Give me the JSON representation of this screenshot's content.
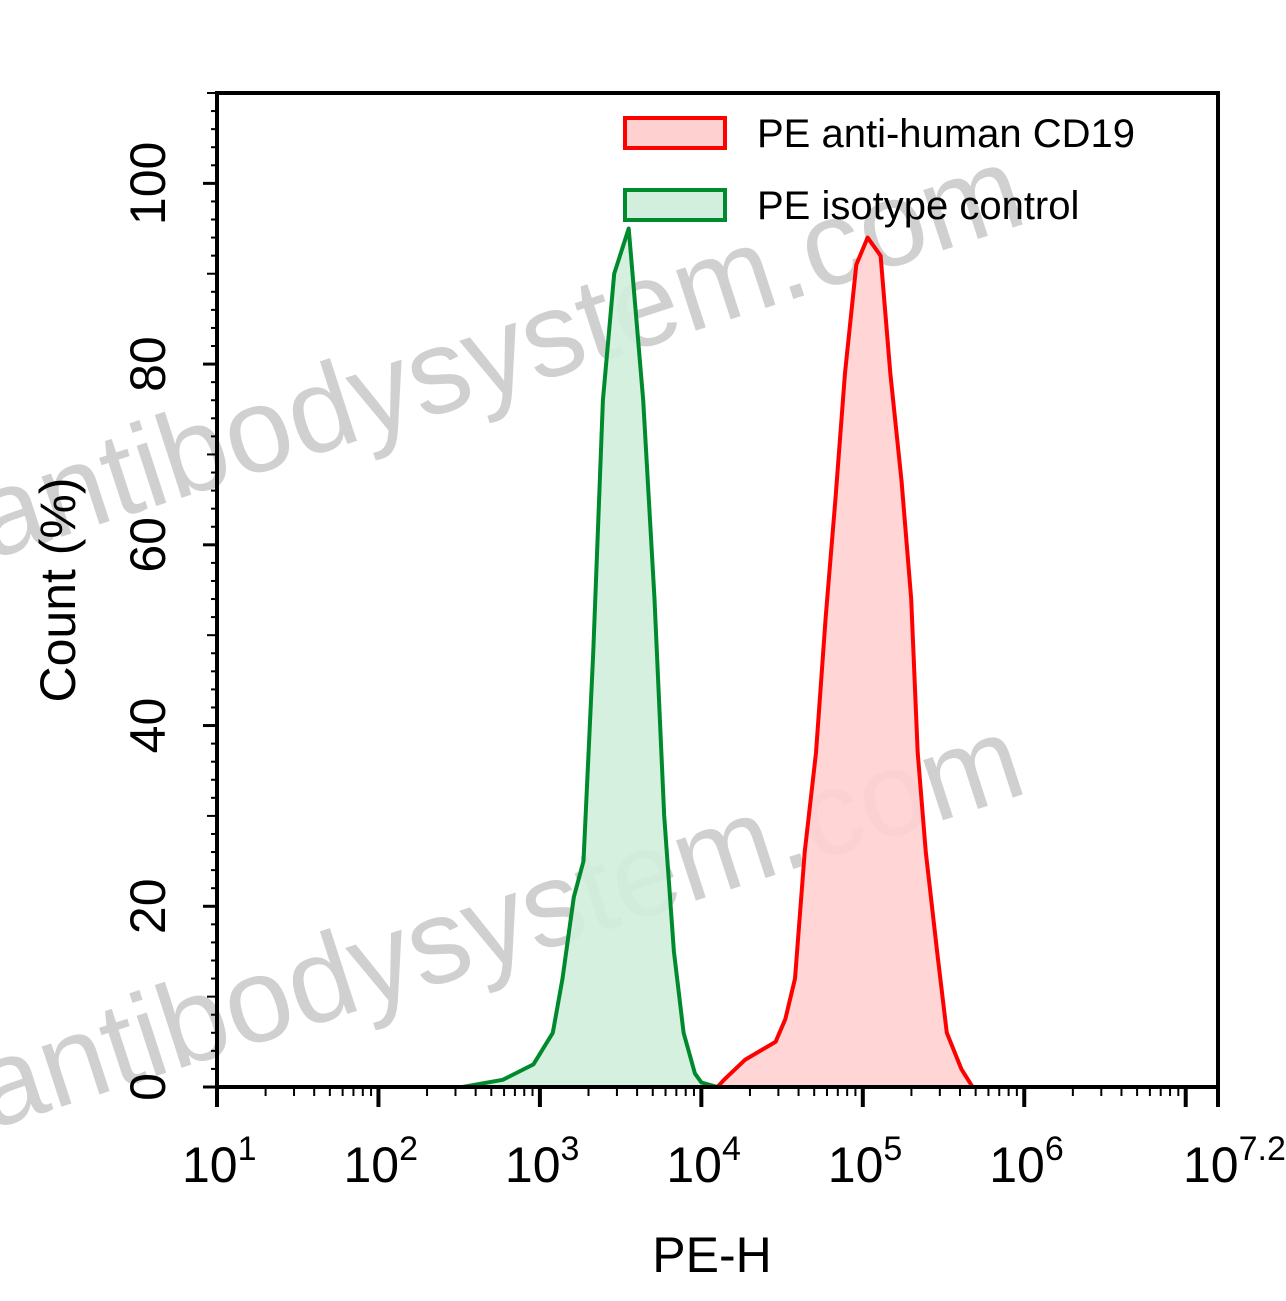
{
  "chart_data": {
    "type": "area",
    "title": "",
    "xlabel": "PE-H",
    "ylabel": "Count (%)",
    "xscale": "log10",
    "xlim_log10": [
      1,
      7.2
    ],
    "ylim": [
      0,
      110
    ],
    "xticks": [
      {
        "base": "10",
        "exp": "1",
        "log": 1
      },
      {
        "base": "10",
        "exp": "2",
        "log": 2
      },
      {
        "base": "10",
        "exp": "3",
        "log": 3
      },
      {
        "base": "10",
        "exp": "4",
        "log": 4
      },
      {
        "base": "10",
        "exp": "5",
        "log": 5
      },
      {
        "base": "10",
        "exp": "6",
        "log": 6
      },
      {
        "base": "10",
        "exp": "7.2",
        "log": 7.2
      }
    ],
    "yticks": [
      "0",
      "20",
      "40",
      "60",
      "80",
      "100"
    ],
    "legend_position": "top-right",
    "series": [
      {
        "name": "PE anti-human CD19",
        "stroke": "#ff0000",
        "fill": "#ffd0d0",
        "x_log10": [
          4.1,
          4.14,
          4.27,
          4.46,
          4.52,
          4.58,
          4.64,
          4.71,
          4.77,
          4.83,
          4.89,
          4.96,
          5.03,
          5.11,
          5.17,
          5.24,
          5.3,
          5.34,
          5.39,
          5.46,
          5.52,
          5.61,
          5.68
        ],
        "y": [
          0,
          0.8,
          3,
          5,
          7.5,
          12,
          26,
          37,
          52,
          65,
          79,
          91,
          94,
          92,
          79,
          67,
          54,
          37,
          26,
          15,
          6,
          2,
          0
        ]
      },
      {
        "name": "PE isotype control",
        "stroke": "#008a2e",
        "fill": "#d2eedc",
        "x_log10": [
          2.52,
          2.77,
          2.96,
          3.08,
          3.14,
          3.21,
          3.27,
          3.33,
          3.39,
          3.46,
          3.55,
          3.64,
          3.71,
          3.77,
          3.83,
          3.89,
          3.96,
          4.0,
          4.1
        ],
        "y": [
          0,
          0.8,
          2.5,
          6,
          12,
          21,
          25,
          48,
          76,
          90,
          95,
          76,
          54,
          30,
          15,
          6,
          1.5,
          0.5,
          0
        ]
      }
    ]
  },
  "watermark": "antibodysystem.com"
}
